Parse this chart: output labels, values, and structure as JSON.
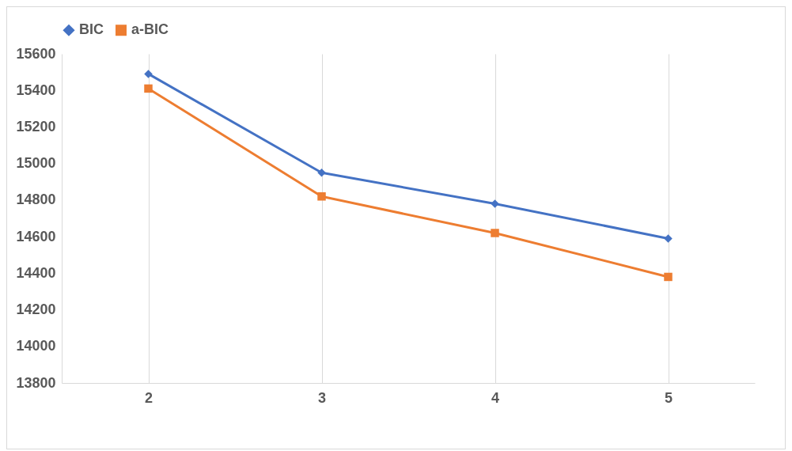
{
  "chart_data": {
    "type": "line",
    "categories": [
      "2",
      "3",
      "4",
      "5"
    ],
    "series": [
      {
        "name": "BIC",
        "color": "#4472c4",
        "marker": "diamond",
        "values": [
          15490,
          14950,
          14780,
          14590
        ]
      },
      {
        "name": "a-BIC",
        "color": "#ed7d31",
        "marker": "square",
        "values": [
          15410,
          14820,
          14620,
          14380
        ]
      }
    ],
    "ylim": [
      13800,
      15600
    ],
    "yticks": [
      13800,
      14000,
      14200,
      14400,
      14600,
      14800,
      15000,
      15200,
      15400,
      15600
    ],
    "grid": "x",
    "legend": "top"
  }
}
